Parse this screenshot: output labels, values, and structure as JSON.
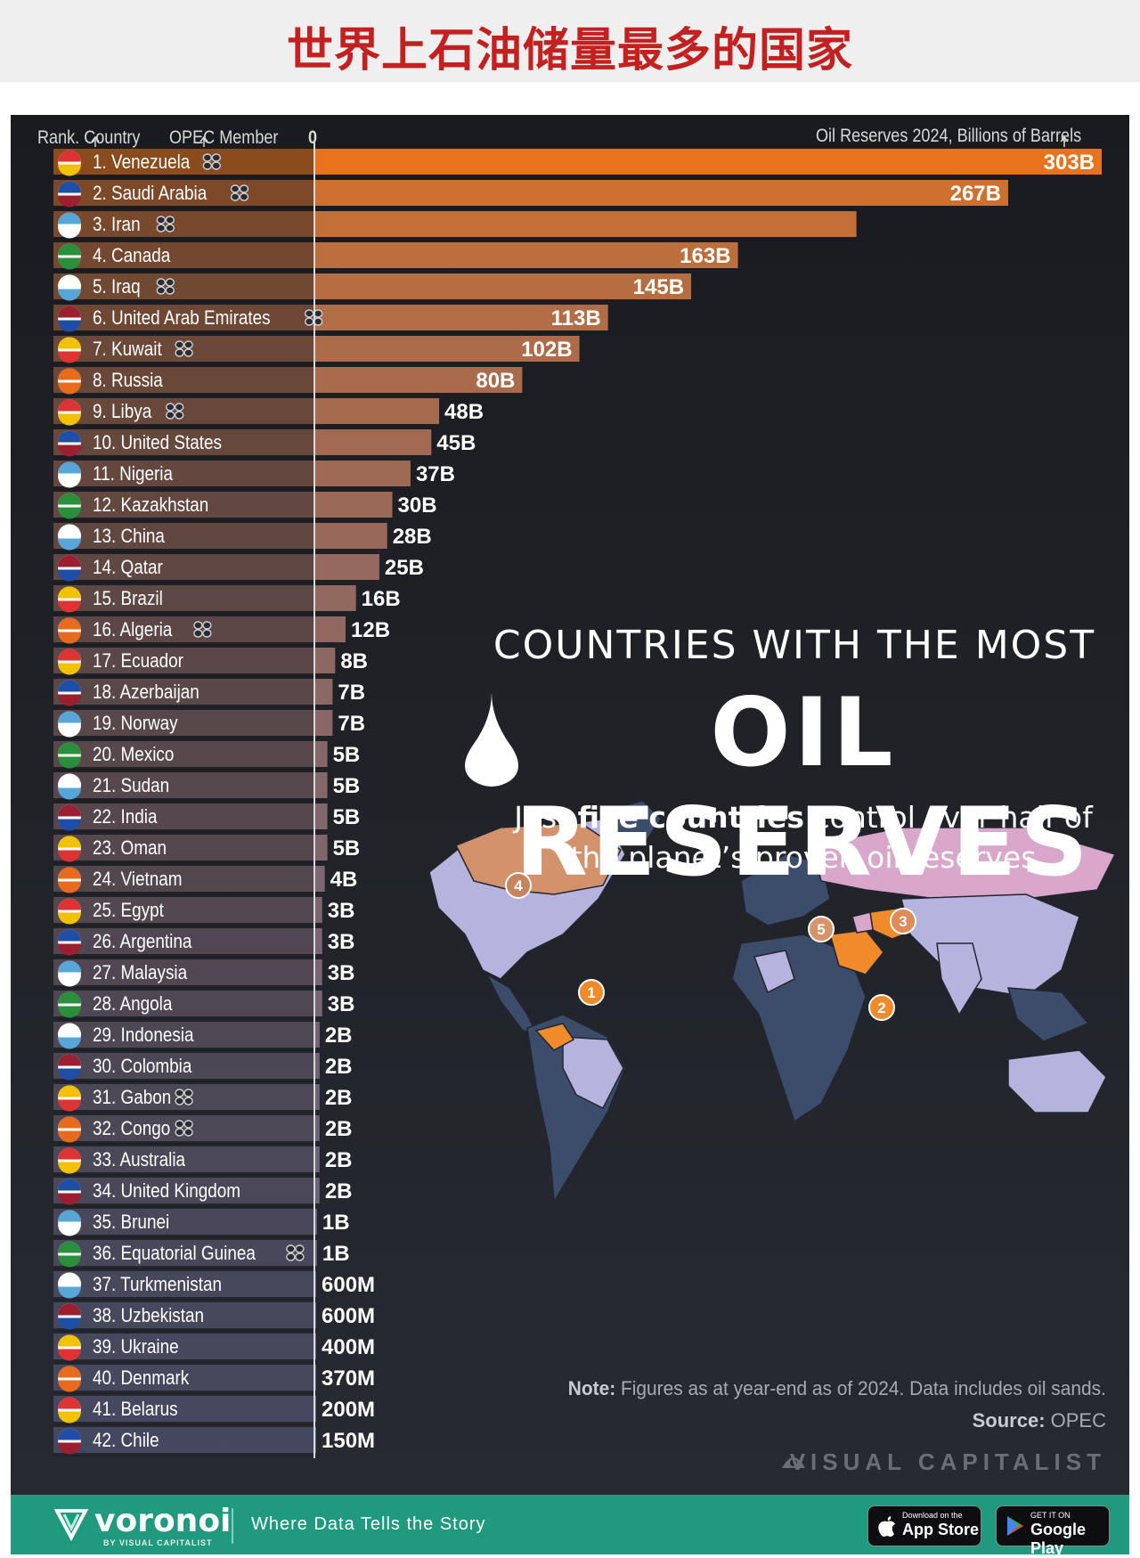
{
  "header": {
    "cn_title": "世界上石油储量最多的国家"
  },
  "column_headers": {
    "rank_country": "Rank. Country",
    "opec": "OPEC Member",
    "zero": "0",
    "reserves": "Oil Reserves 2024, Billions of Barrels"
  },
  "chart_data": {
    "type": "bar",
    "orientation": "horizontal",
    "unit": "Billions of Barrels",
    "xlim": [
      0,
      303
    ],
    "rows": [
      {
        "rank": 1,
        "label": "1. Venezuela",
        "value": 303,
        "value_label": "303B",
        "opec": true,
        "region": 1
      },
      {
        "rank": 2,
        "label": "2. Saudi Arabia",
        "value": 267,
        "value_label": "267B",
        "opec": true,
        "region": 2
      },
      {
        "rank": 3,
        "label": "3. Iran",
        "value": 208.6,
        "value_label": "",
        "opec": true,
        "region": 3
      },
      {
        "rank": 4,
        "label": "4. Canada",
        "value": 163,
        "value_label": "163B",
        "opec": false,
        "region": 4
      },
      {
        "rank": 5,
        "label": "5. Iraq",
        "value": 145,
        "value_label": "145B",
        "opec": true,
        "region": 5
      },
      {
        "rank": 6,
        "label": "6. United Arab Emirates",
        "value": 113,
        "value_label": "113B",
        "opec": true
      },
      {
        "rank": 7,
        "label": "7. Kuwait",
        "value": 102,
        "value_label": "102B",
        "opec": true
      },
      {
        "rank": 8,
        "label": "8. Russia",
        "value": 80,
        "value_label": "80B",
        "opec": false
      },
      {
        "rank": 9,
        "label": "9. Libya",
        "value": 48,
        "value_label": "48B",
        "opec": true
      },
      {
        "rank": 10,
        "label": "10. United States",
        "value": 45,
        "value_label": "45B",
        "opec": false
      },
      {
        "rank": 11,
        "label": "11. Nigeria",
        "value": 37,
        "value_label": "37B",
        "opec": false
      },
      {
        "rank": 12,
        "label": "12. Kazakhstan",
        "value": 30,
        "value_label": "30B",
        "opec": false
      },
      {
        "rank": 13,
        "label": "13. China",
        "value": 28,
        "value_label": "28B",
        "opec": false
      },
      {
        "rank": 14,
        "label": "14. Qatar",
        "value": 25,
        "value_label": "25B",
        "opec": false
      },
      {
        "rank": 15,
        "label": "15. Brazil",
        "value": 16,
        "value_label": "16B",
        "opec": false
      },
      {
        "rank": 16,
        "label": "16. Algeria",
        "value": 12,
        "value_label": "12B",
        "opec": true
      },
      {
        "rank": 17,
        "label": "17. Ecuador",
        "value": 8,
        "value_label": "8B",
        "opec": false
      },
      {
        "rank": 18,
        "label": "18. Azerbaijan",
        "value": 7,
        "value_label": "7B",
        "opec": false
      },
      {
        "rank": 19,
        "label": "19. Norway",
        "value": 7,
        "value_label": "7B",
        "opec": false
      },
      {
        "rank": 20,
        "label": "20. Mexico",
        "value": 5,
        "value_label": "5B",
        "opec": false
      },
      {
        "rank": 21,
        "label": "21. Sudan",
        "value": 5,
        "value_label": "5B",
        "opec": false
      },
      {
        "rank": 22,
        "label": "22. India",
        "value": 5,
        "value_label": "5B",
        "opec": false
      },
      {
        "rank": 23,
        "label": "23. Oman",
        "value": 5,
        "value_label": "5B",
        "opec": false
      },
      {
        "rank": 24,
        "label": "24. Vietnam",
        "value": 4,
        "value_label": "4B",
        "opec": false
      },
      {
        "rank": 25,
        "label": "25. Egypt",
        "value": 3,
        "value_label": "3B",
        "opec": false
      },
      {
        "rank": 26,
        "label": "26. Argentina",
        "value": 3,
        "value_label": "3B",
        "opec": false
      },
      {
        "rank": 27,
        "label": "27. Malaysia",
        "value": 3,
        "value_label": "3B",
        "opec": false
      },
      {
        "rank": 28,
        "label": "28. Angola",
        "value": 3,
        "value_label": "3B",
        "opec": false
      },
      {
        "rank": 29,
        "label": "29. Indonesia",
        "value": 2,
        "value_label": "2B",
        "opec": false
      },
      {
        "rank": 30,
        "label": "30. Colombia",
        "value": 2,
        "value_label": "2B",
        "opec": false
      },
      {
        "rank": 31,
        "label": "31. Gabon",
        "value": 2,
        "value_label": "2B",
        "opec": true
      },
      {
        "rank": 32,
        "label": "32. Congo",
        "value": 2,
        "value_label": "2B",
        "opec": true
      },
      {
        "rank": 33,
        "label": "33. Australia",
        "value": 2,
        "value_label": "2B",
        "opec": false
      },
      {
        "rank": 34,
        "label": "34. United Kingdom",
        "value": 2,
        "value_label": "2B",
        "opec": false
      },
      {
        "rank": 35,
        "label": "35. Brunei",
        "value": 1,
        "value_label": "1B",
        "opec": false
      },
      {
        "rank": 36,
        "label": "36. Equatorial Guinea",
        "value": 1,
        "value_label": "1B",
        "opec": true
      },
      {
        "rank": 37,
        "label": "37. Turkmenistan",
        "value": 0.6,
        "value_label": "600M",
        "opec": false
      },
      {
        "rank": 38,
        "label": "38. Uzbekistan",
        "value": 0.6,
        "value_label": "600M",
        "opec": false
      },
      {
        "rank": 39,
        "label": "39. Ukraine",
        "value": 0.4,
        "value_label": "400M",
        "opec": false
      },
      {
        "rank": 40,
        "label": "40. Denmark",
        "value": 0.37,
        "value_label": "370M",
        "opec": false
      },
      {
        "rank": 41,
        "label": "41. Belarus",
        "value": 0.2,
        "value_label": "200M",
        "opec": false
      },
      {
        "rank": 42,
        "label": "42. Chile",
        "value": 0.15,
        "value_label": "150M",
        "opec": false
      }
    ]
  },
  "map_section": {
    "title_line1": "COUNTRIES WITH THE MOST",
    "title_line2": "OIL RESERVES",
    "subtitle_pre": "Just ",
    "subtitle_bold": "five countries",
    "subtitle_post": " control over half of the planet’s proven oil reserves",
    "markers": [
      "1",
      "2",
      "3",
      "4",
      "5"
    ]
  },
  "note": {
    "label": "Note:",
    "text": " Figures as at year-end as of 2024. Data includes oil sands."
  },
  "source": {
    "label": "Source:",
    "text": " OPEC"
  },
  "brand": {
    "name": "VISUAL CAPITALIST"
  },
  "footer": {
    "logo": "voronoi",
    "logo_sub": "BY VISUAL CAPITALIST",
    "tagline": "Where Data Tells the Story",
    "appstore_small": "Download on the",
    "appstore_big": "App Store",
    "googleplay_small": "GET IT ON",
    "googleplay_big": "Google Play"
  },
  "colors": {
    "bar_top": "#e8731c",
    "bar_bottom": "#5d6287",
    "highlight": "#f08a2a",
    "panel_bg": "#1f2127",
    "footer_bg": "#1f9a7e",
    "title_red": "#c42020"
  }
}
